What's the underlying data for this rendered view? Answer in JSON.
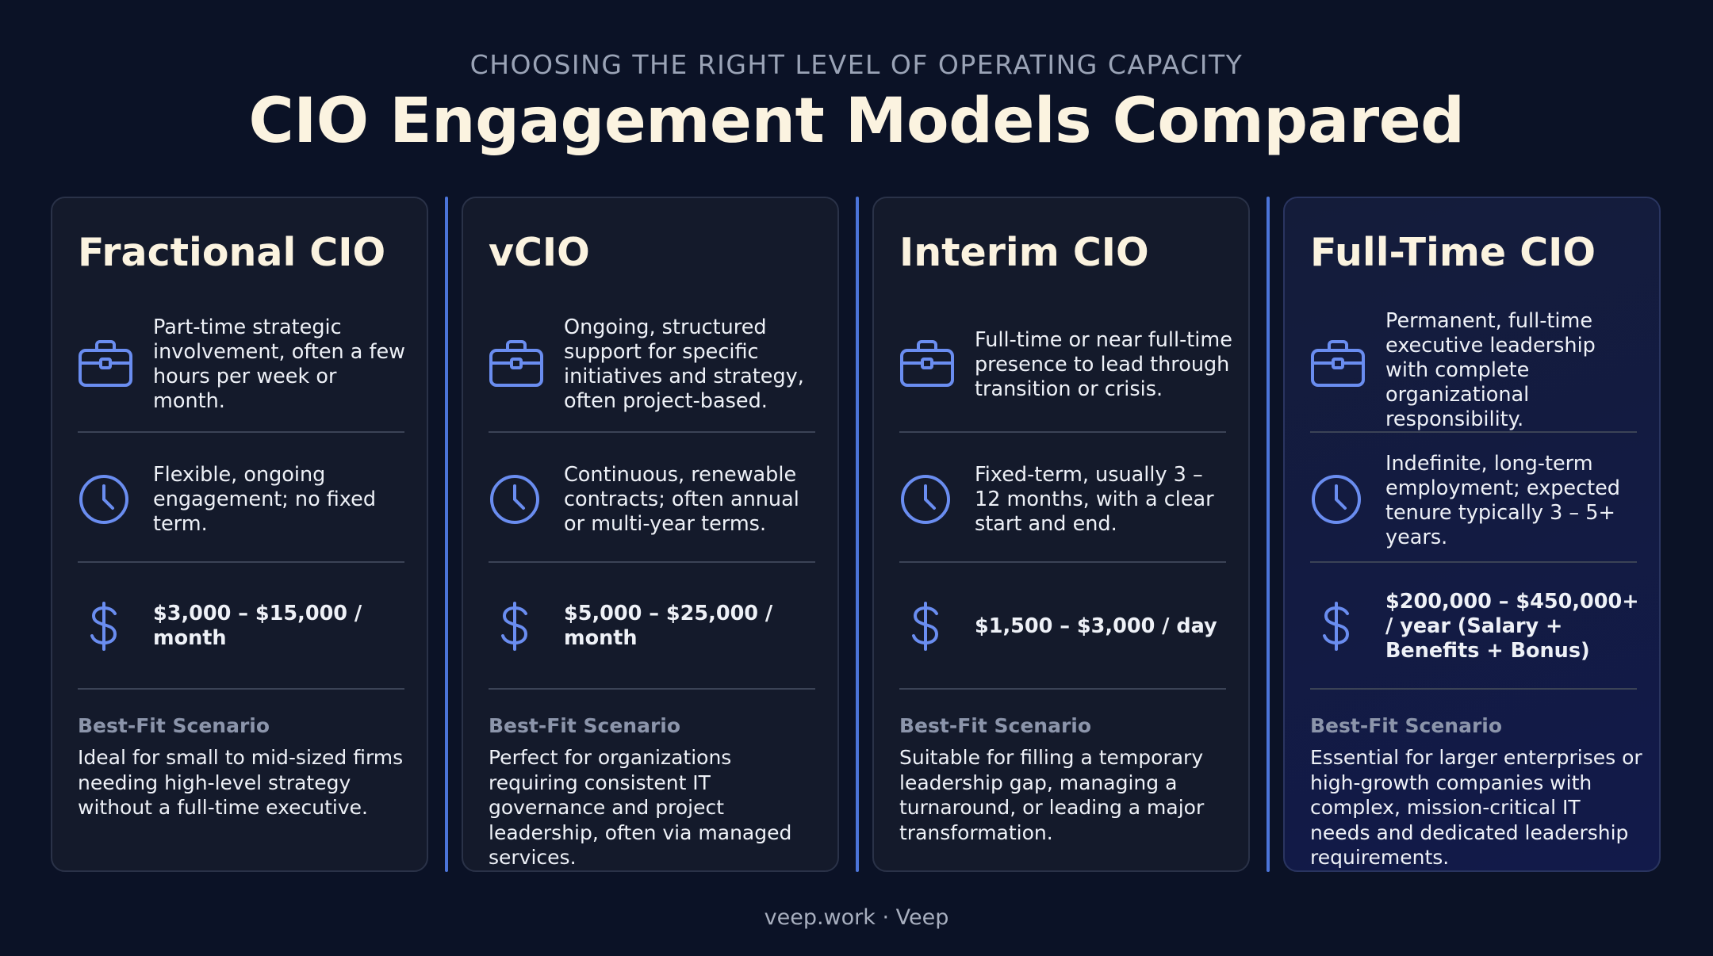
{
  "header": {
    "eyebrow": "CHOOSING THE RIGHT LEVEL OF OPERATING CAPACITY",
    "title": "CIO Engagement Models Compared"
  },
  "colors": {
    "background": "#0b1226",
    "accent": "#4b74d9",
    "icon": "#6a8df0",
    "title_text": "#fbf3e0"
  },
  "best_fit_label": "Best-Fit Scenario",
  "cards": [
    {
      "title": "Fractional CIO",
      "involvement_icon": "briefcase-icon",
      "involvement": "Part-time strategic involvement, often a few hours per week or month.",
      "term_icon": "clock-icon",
      "term": "Flexible, ongoing engagement; no fixed term.",
      "cost_icon": "dollar-icon",
      "cost": "$3,000 – $15,000 / month",
      "best_fit": "Ideal for small to mid-sized firms needing high-level strategy without a full-time executive."
    },
    {
      "title": "vCIO",
      "involvement_icon": "briefcase-icon",
      "involvement": "Ongoing, structured support for specific initiatives and strategy, often project-based.",
      "term_icon": "clock-icon",
      "term": "Continuous, renewable contracts; often annual or multi-year terms.",
      "cost_icon": "dollar-icon",
      "cost": "$5,000 – $25,000 / month",
      "best_fit": "Perfect for organizations requiring consistent IT governance and project leadership, often via managed services."
    },
    {
      "title": "Interim CIO",
      "involvement_icon": "briefcase-icon",
      "involvement": "Full-time or near full-time presence to lead through transition or crisis.",
      "term_icon": "clock-icon",
      "term": "Fixed-term, usually 3 – 12 months, with a clear start and end.",
      "cost_icon": "dollar-icon",
      "cost": "$1,500 – $3,000 / day",
      "best_fit": "Suitable for filling a temporary leadership gap, managing a turnaround, or leading a major transformation."
    },
    {
      "title": "Full-Time CIO",
      "involvement_icon": "briefcase-icon",
      "involvement": "Permanent, full-time executive leadership with complete organizational responsibility.",
      "term_icon": "clock-icon",
      "term": "Indefinite, long-term employment; expected tenure typically 3 – 5+ years.",
      "cost_icon": "dollar-icon",
      "cost": "$200,000 – $450,000+ / year (Salary + Benefits + Bonus)",
      "best_fit": "Essential for larger enterprises or high-growth companies with complex, mission-critical IT needs and dedicated leadership requirements."
    }
  ],
  "footer": "veep.work · Veep"
}
